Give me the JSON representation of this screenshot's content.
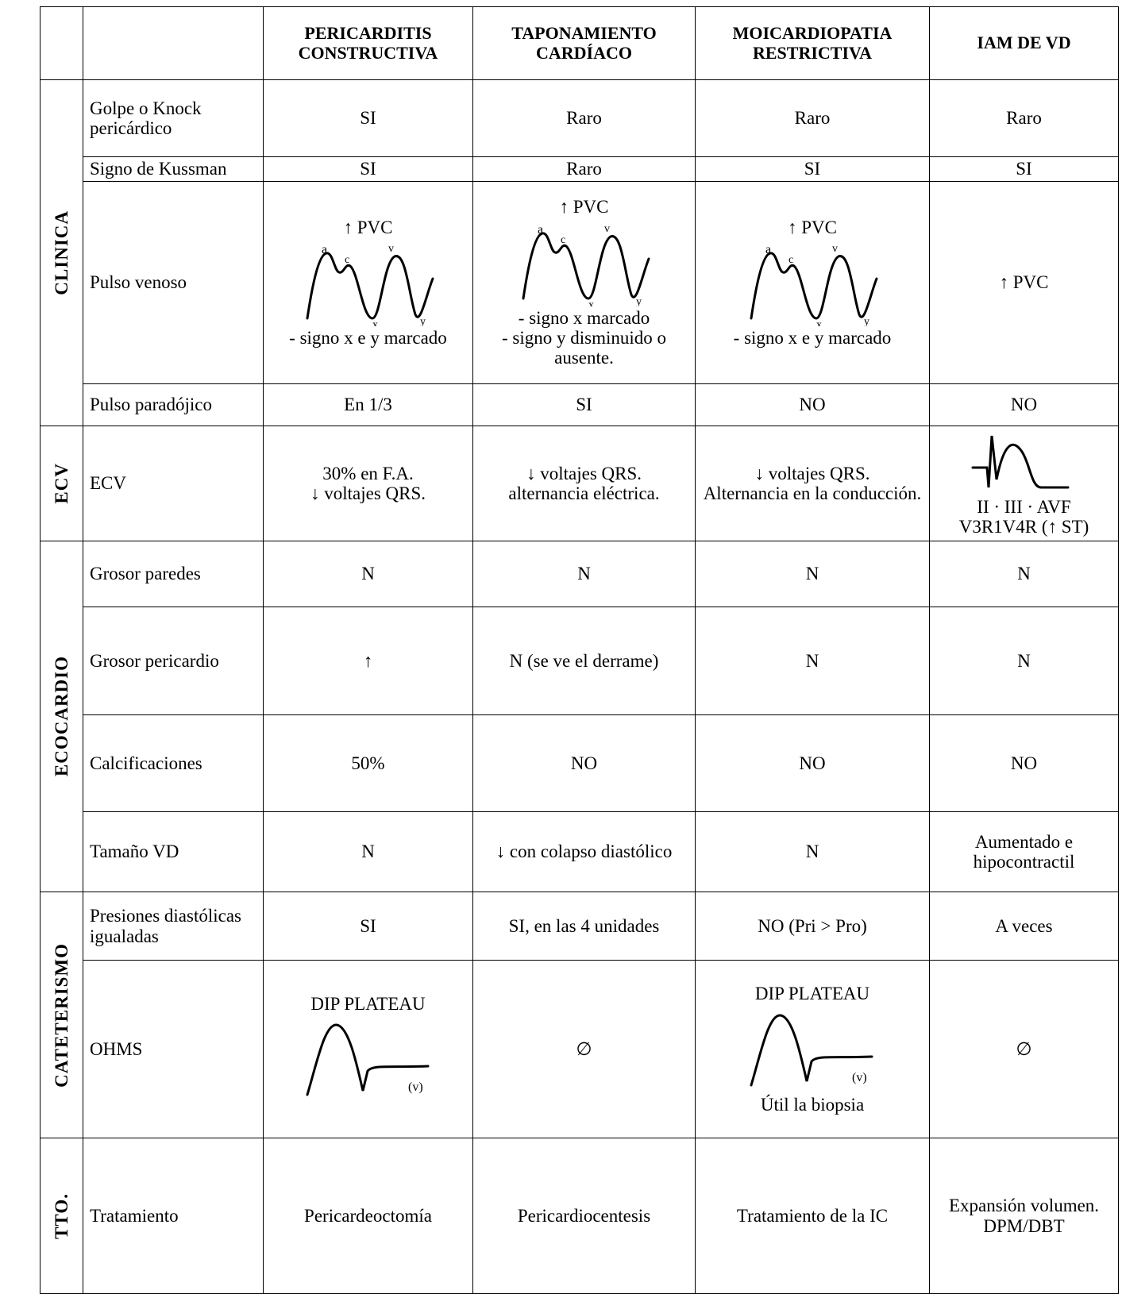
{
  "header": [
    "PERICARDITIS CONSTRUCTIVA",
    "TAPONAMIENTO CARDÍACO",
    "MOICARDIOPATIA RESTRICTIVA",
    "IAM DE VD"
  ],
  "sections": [
    {
      "label": "CLINICA",
      "rows": [
        {
          "label": "Golpe o Knock pericárdico",
          "cells": [
            "SI",
            "Raro",
            "Raro",
            "Raro"
          ]
        },
        {
          "label": "Signo de Kussman",
          "cells": [
            "SI",
            "Raro",
            "SI",
            "SI"
          ]
        },
        {
          "label": "Pulso venoso",
          "cells": [
            [
              "↑ PVC",
              "- signo x e y marcado"
            ],
            [
              "↑ PVC",
              "- signo x marcado",
              "- signo y disminuido o ausente."
            ],
            [
              "↑ PVC",
              "- signo x e y marcado"
            ],
            "↑ PVC"
          ]
        },
        {
          "label": "Pulso paradójico",
          "cells": [
            "En 1/3",
            "SI",
            "NO",
            "NO"
          ]
        }
      ]
    },
    {
      "label": "ECV",
      "rows": [
        {
          "label": "ECV",
          "cells": [
            [
              "30% en F.A.",
              "↓ voltajes QRS."
            ],
            [
              "↓ voltajes QRS.",
              "alternancia eléctrica."
            ],
            [
              "↓ voltajes QRS.",
              "Alternancia en la conducción."
            ],
            [
              "II · III · AVF",
              "V3R1V4R (↑ ST)"
            ]
          ]
        }
      ]
    },
    {
      "label": "ECOCARDIO",
      "rows": [
        {
          "label": "Grosor paredes",
          "cells": [
            "N",
            "N",
            "N",
            "N"
          ]
        },
        {
          "label": "Grosor pericardio",
          "cells": [
            "↑",
            "N (se ve el derrame)",
            "N",
            "N"
          ]
        },
        {
          "label": "Calcificaciones",
          "cells": [
            "50%",
            "NO",
            "NO",
            "NO"
          ]
        },
        {
          "label": "Tamaño VD",
          "cells": [
            "N",
            "↓ con colapso diastólico",
            "N",
            "Aumentado e hipocontractil"
          ]
        }
      ]
    },
    {
      "label": "CATETERISMO",
      "rows": [
        {
          "label": "Presiones diastólicas igualadas",
          "cells": [
            "SI",
            "SI, en las 4 unidades",
            "NO (Pri > Pro)",
            "A veces"
          ]
        },
        {
          "label": "OHMS",
          "cells": [
            [
              "DIP PLATEAU"
            ],
            "∅",
            [
              "DIP PLATEAU",
              "Útil la biopsia"
            ],
            "∅"
          ]
        }
      ]
    },
    {
      "label": "TTO.",
      "rows": [
        {
          "label": "Tratamiento",
          "cells": [
            "Pericardeoctomía",
            "Pericardiocentesis",
            "Tratamiento de la IC",
            "Expansión volumen. DPM/DBT"
          ]
        }
      ]
    }
  ]
}
